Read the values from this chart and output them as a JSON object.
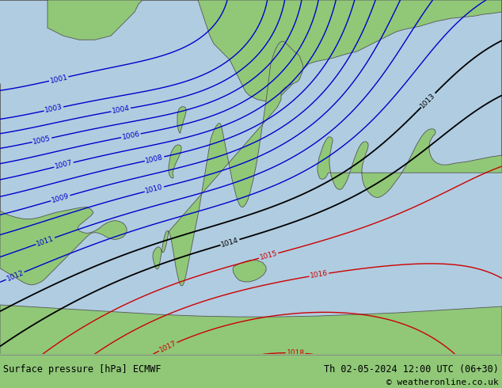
{
  "title_left": "Surface pressure [hPa] ECMWF",
  "title_right": "Th 02-05-2024 12:00 UTC (06+30)",
  "copyright": "© weatheronline.co.uk",
  "bg_land": "#90c878",
  "bg_sea": "#c8d8e8",
  "bg_land_light": "#b8e0a0",
  "isobar_blue": "#0000cc",
  "isobar_black": "#000000",
  "isobar_red": "#cc0000",
  "figsize": [
    6.34,
    4.9
  ],
  "dpi": 100,
  "bottom_bar_color": "#d8ecd8",
  "bottom_text_color": "#000000",
  "map_bg": "#b0cce0"
}
